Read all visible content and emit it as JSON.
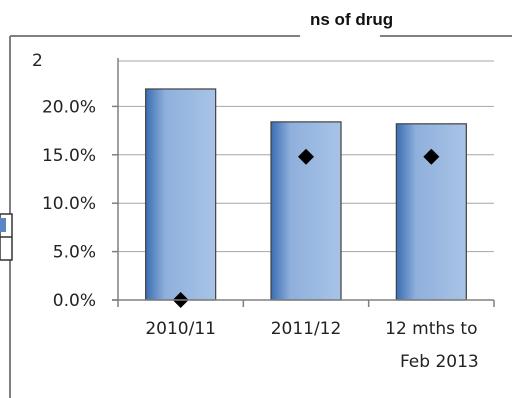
{
  "chart_data": {
    "type": "bar",
    "title": "ns of drug",
    "title_fragment_left": "2",
    "categories": [
      [
        "2010/11"
      ],
      [
        "2011/12"
      ],
      [
        "12 mths to",
        "Feb 2013"
      ]
    ],
    "series": [
      {
        "type": "bar",
        "values": [
          21.8,
          18.4,
          18.2
        ],
        "color": "#8fb0dc"
      },
      {
        "type": "marker",
        "values": [
          0.0,
          14.8,
          14.8
        ],
        "color": "#000000"
      }
    ],
    "yticks": [
      "0.0%",
      "5.0%",
      "10.0%",
      "15.0%",
      "20.0%"
    ],
    "ytick_values": [
      0,
      5,
      10,
      15,
      20
    ],
    "ylim": [
      0,
      25
    ],
    "grid": true,
    "gridline_color": "#a6a6a6",
    "axis_color": "#808080"
  }
}
